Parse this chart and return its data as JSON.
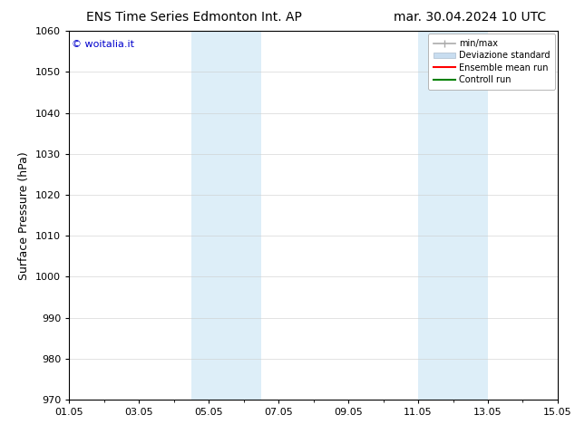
{
  "title_left": "ENS Time Series Edmonton Int. AP",
  "title_right": "mar. 30.04.2024 10 UTC",
  "ylabel": "Surface Pressure (hPa)",
  "ylim": [
    970,
    1060
  ],
  "yticks": [
    970,
    980,
    990,
    1000,
    1010,
    1020,
    1030,
    1040,
    1050,
    1060
  ],
  "xtick_labels": [
    "01.05",
    "03.05",
    "05.05",
    "07.05",
    "09.05",
    "11.05",
    "13.05",
    "15.05"
  ],
  "xtick_positions": [
    0,
    2,
    4,
    6,
    8,
    10,
    12,
    14
  ],
  "xlim": [
    0,
    14
  ],
  "shaded_bands": [
    {
      "x_start": 3.5,
      "x_end": 5.5
    },
    {
      "x_start": 10.0,
      "x_end": 12.0
    }
  ],
  "shaded_color": "#ddeef8",
  "background_color": "#ffffff",
  "watermark_text": "© woitalia.it",
  "watermark_color": "#0000cc",
  "legend_minmax_color": "#aaaaaa",
  "legend_dev_color": "#c8ddf0",
  "legend_ens_color": "#ff0000",
  "legend_ctrl_color": "#008000",
  "title_fontsize": 10,
  "axis_label_fontsize": 9,
  "tick_fontsize": 8,
  "legend_fontsize": 7,
  "grid_color": "#cccccc",
  "spine_color": "#000000"
}
